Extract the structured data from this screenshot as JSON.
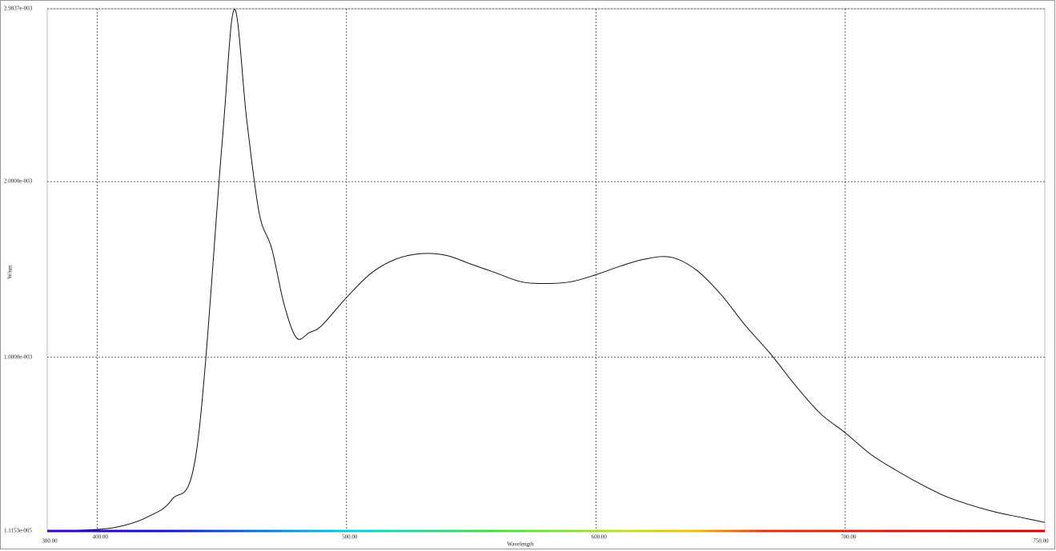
{
  "chart_data": {
    "type": "line",
    "x_axis_label": "Wavelength",
    "y_axis_label": "W/nm",
    "x_end_labels": [
      "380.00",
      "750.00"
    ],
    "xlim": [
      380,
      780
    ],
    "xticks": [
      {
        "value": 400,
        "label": "400.00"
      },
      {
        "value": 500,
        "label": "500.00"
      },
      {
        "value": 600,
        "label": "600.00"
      },
      {
        "value": 700,
        "label": "700.00"
      }
    ],
    "ylim": [
      1.1153e-05,
      0.0029837
    ],
    "yticks": [
      {
        "value": 1.1153e-05,
        "label": "1.1153e-005"
      },
      {
        "value": 0.001,
        "label": "1.0000e-003"
      },
      {
        "value": 0.002,
        "label": "2.0000e-003"
      },
      {
        "value": 0.0029837,
        "label": "2.9837e-003"
      }
    ],
    "grid": true,
    "x": [
      380,
      400,
      410,
      420,
      430,
      440,
      450,
      455,
      460,
      465,
      470,
      475,
      480,
      485,
      490,
      500,
      510,
      520,
      530,
      540,
      550,
      560,
      570,
      580,
      590,
      600,
      610,
      620,
      630,
      640,
      650,
      660,
      670,
      680,
      690,
      700,
      710,
      720,
      730,
      740,
      750,
      760,
      770,
      780
    ],
    "series": [
      {
        "color": "#111111",
        "values": [
          1.1e-05,
          2e-05,
          4e-05,
          9e-05,
          0.00019,
          0.00048,
          0.0022,
          0.00298,
          0.00235,
          0.00182,
          0.00162,
          0.0013,
          0.00111,
          0.00114,
          0.00118,
          0.00134,
          0.00148,
          0.00156,
          0.00159,
          0.00158,
          0.00153,
          0.00148,
          0.00143,
          0.00142,
          0.00143,
          0.00147,
          0.00152,
          0.00156,
          0.00157,
          0.0015,
          0.00136,
          0.00118,
          0.00102,
          0.00084,
          0.00068,
          0.00057,
          0.00045,
          0.00036,
          0.00028,
          0.00021,
          0.00016,
          0.00012,
          9e-05,
          6e-05
        ]
      }
    ]
  }
}
